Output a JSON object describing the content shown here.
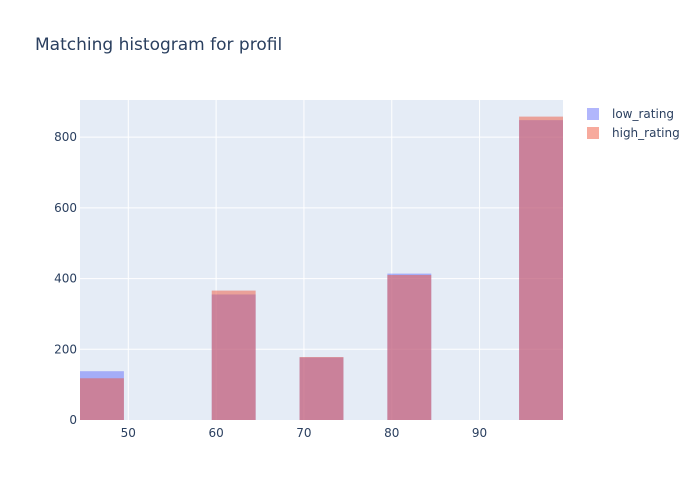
{
  "chart_data": {
    "type": "bar",
    "title": "Matching histogram for profil",
    "xlabel": "",
    "ylabel": "",
    "barmode": "overlay",
    "xlim": [
      44.5,
      99.5
    ],
    "ylim": [
      0,
      905
    ],
    "x_ticks": [
      50,
      60,
      70,
      80,
      90
    ],
    "y_ticks": [
      0,
      200,
      400,
      600,
      800
    ],
    "bin_width": 5,
    "grid": true,
    "legend_position": "top-right",
    "series": [
      {
        "name": "low_rating",
        "color": "#636efa",
        "bins": [
          {
            "start": 44.5,
            "value": 138
          },
          {
            "start": 59.5,
            "value": 355
          },
          {
            "start": 69.5,
            "value": 177
          },
          {
            "start": 79.5,
            "value": 414
          },
          {
            "start": 94.5,
            "value": 848
          }
        ]
      },
      {
        "name": "high_rating",
        "color": "#ef553b",
        "bins": [
          {
            "start": 44.5,
            "value": 118
          },
          {
            "start": 59.5,
            "value": 366
          },
          {
            "start": 69.5,
            "value": 178
          },
          {
            "start": 79.5,
            "value": 410
          },
          {
            "start": 94.5,
            "value": 858
          }
        ]
      }
    ]
  }
}
